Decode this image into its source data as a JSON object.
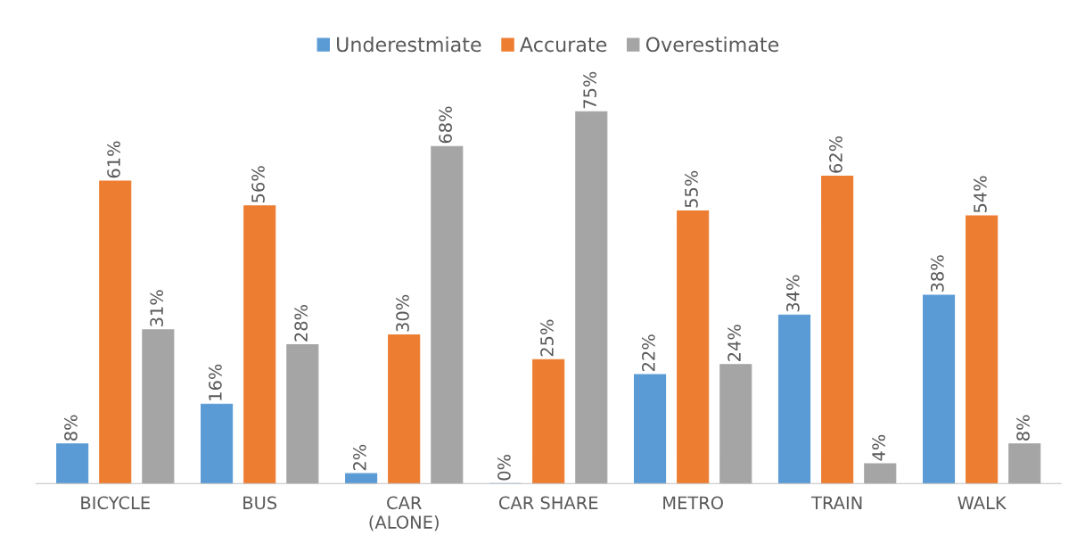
{
  "chart_data": {
    "type": "bar",
    "categories": [
      "BICYCLE",
      "BUS",
      "CAR\n(ALONE)",
      "CAR SHARE",
      "METRO",
      "TRAIN",
      "WALK"
    ],
    "series": [
      {
        "name": "Underestmiate",
        "color": "#5b9bd5",
        "values": [
          8,
          16,
          2,
          0,
          22,
          34,
          38
        ],
        "value_labels": [
          "8%",
          "16%",
          "2%",
          "0%",
          "22%",
          "34%",
          "38%"
        ]
      },
      {
        "name": "Accurate",
        "color": "#ed7d31",
        "values": [
          61,
          56,
          30,
          25,
          55,
          62,
          54
        ],
        "value_labels": [
          "61%",
          "56%",
          "30%",
          "25%",
          "55%",
          "62%",
          "54%"
        ]
      },
      {
        "name": "Overestimate",
        "color": "#a5a5a5",
        "values": [
          31,
          28,
          68,
          75,
          24,
          4,
          8
        ],
        "value_labels": [
          "31%",
          "28%",
          "68%",
          "75%",
          "24%",
          "4%",
          "8%"
        ]
      }
    ],
    "legend": "top",
    "grid": false
  }
}
